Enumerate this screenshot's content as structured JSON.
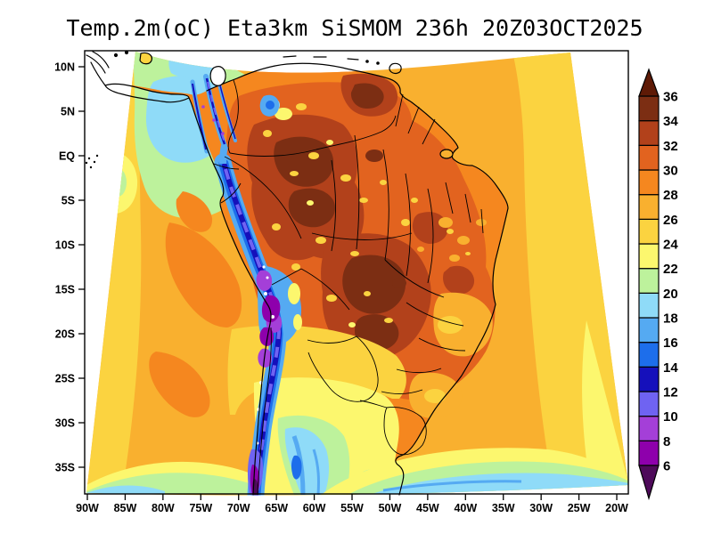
{
  "title": "Temp.2m(oC) Eta3km SiSMOM 236h 20Z03OCT2025",
  "chart_data": {
    "type": "heatmap",
    "title": "Temp.2m(oC) Eta3km SiSMOM 236h 20Z03OCT2025",
    "variable": "Temp.2m(oC)",
    "model": "Eta3km SiSMOM",
    "forecast_hour": "236h",
    "valid_time": "20Z03OCT2025",
    "xlabel": "",
    "ylabel": "",
    "x_ticks": [
      "90W",
      "85W",
      "80W",
      "75W",
      "70W",
      "65W",
      "60W",
      "55W",
      "50W",
      "45W",
      "40W",
      "35W",
      "30W",
      "25W",
      "20W"
    ],
    "y_ticks": [
      "10N",
      "5N",
      "EQ",
      "5S",
      "10S",
      "15S",
      "20S",
      "25S",
      "30S",
      "35S"
    ],
    "grid": false,
    "legend_position": "right-colorbar",
    "colorbar": {
      "tick_labels": [
        "36",
        "34",
        "32",
        "30",
        "28",
        "26",
        "24",
        "22",
        "20",
        "18",
        "16",
        "14",
        "12",
        "10",
        "8",
        "6"
      ],
      "bands": [
        {
          "range": "<6",
          "color": "#4e0a5a"
        },
        {
          "range": "6-8",
          "color": "#8e00ac"
        },
        {
          "range": "8-10",
          "color": "#a43fd8"
        },
        {
          "range": "10-12",
          "color": "#6f63f2"
        },
        {
          "range": "12-14",
          "color": "#1510bb"
        },
        {
          "range": "14-16",
          "color": "#1d6eeb"
        },
        {
          "range": "16-18",
          "color": "#55aaf2"
        },
        {
          "range": "18-20",
          "color": "#8fdbf8"
        },
        {
          "range": "20-22",
          "color": "#bdf29c"
        },
        {
          "range": "22-24",
          "color": "#fcf76e"
        },
        {
          "range": "24-26",
          "color": "#fbd340"
        },
        {
          "range": "26-28",
          "color": "#f9b02f"
        },
        {
          "range": "28-30",
          "color": "#f5871f"
        },
        {
          "range": "30-32",
          "color": "#e2631f"
        },
        {
          "range": "32-34",
          "color": "#b2411b"
        },
        {
          "range": "34-36",
          "color": "#7c2e13"
        },
        {
          "range": ">36",
          "color": "#5e1a06"
        }
      ]
    },
    "regional_values_oC": {
      "amazon_and_central_brazil": "32-36",
      "venezuela_interior": "32-36",
      "paraguay_north_argentina": "32-36",
      "northeast_brazil": "28-32",
      "tropical_atlantic": "24-28",
      "pacific_off_peru": "24-30",
      "gulf_of_panama": "18-22",
      "pampas_argentina_uruguay": "20-26",
      "south_atlantic_southeast_edge": "18-22",
      "andes_cordillera": "<6-16"
    }
  }
}
